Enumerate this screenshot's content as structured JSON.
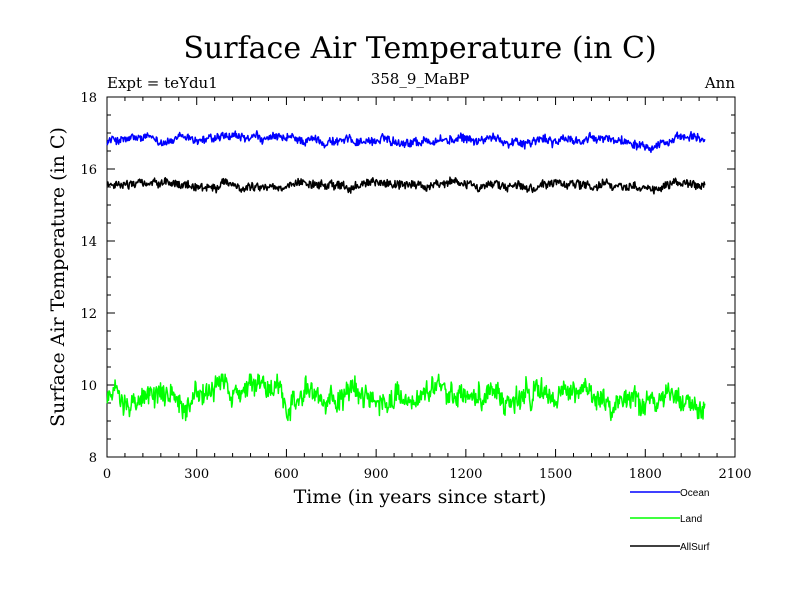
{
  "chart_data": {
    "type": "line",
    "title": "Surface Air Temperature (in C)",
    "subtitle_left": "Expt = teYdu1",
    "subtitle_center": "358_9_MaBP",
    "subtitle_right": "Ann",
    "xlabel": "Time (in years since start)",
    "ylabel": "Surface Air Temperature (in C)",
    "xlim": [
      0,
      2100
    ],
    "ylim": [
      8,
      18
    ],
    "xticks": [
      0,
      300,
      600,
      900,
      1200,
      1500,
      1800,
      2100
    ],
    "yticks": [
      8,
      10,
      12,
      14,
      16,
      18
    ],
    "x_range_data": [
      1,
      2000
    ],
    "series": [
      {
        "name": "Ocean",
        "color": "#0000ff",
        "mean": 16.8,
        "noise": 0.12,
        "min": 16.45,
        "max": 17.1
      },
      {
        "name": "Land",
        "color": "#00ff00",
        "mean": 9.7,
        "noise": 0.32,
        "min": 8.85,
        "max": 10.3
      },
      {
        "name": "AllSurf",
        "color": "#000000",
        "mean": 15.55,
        "noise": 0.12,
        "min": 15.25,
        "max": 15.85
      }
    ],
    "legend_placement": "bottom-right"
  }
}
